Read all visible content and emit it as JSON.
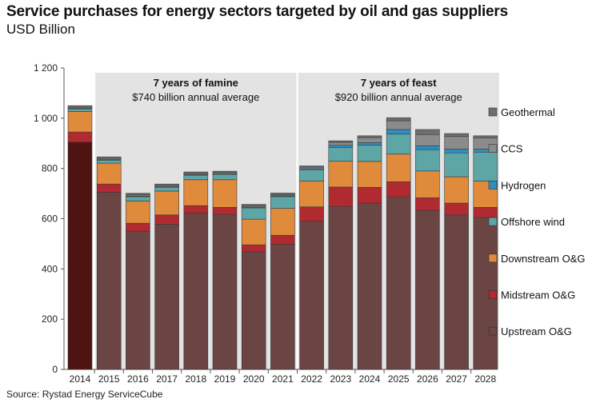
{
  "title": "Service purchases for energy sectors targeted by oil and gas suppliers",
  "subtitle": "USD Billion",
  "source": "Source:  Rystad Energy ServiceCube",
  "chart_data": {
    "type": "bar",
    "stacked": true,
    "categories": [
      "2014",
      "2015",
      "2016",
      "2017",
      "2018",
      "2019",
      "2020",
      "2021",
      "2022",
      "2023",
      "2024",
      "2025",
      "2026",
      "2027",
      "2028"
    ],
    "ylim": [
      0,
      1200
    ],
    "yticks": [
      0,
      200,
      400,
      600,
      800,
      1000,
      1200
    ],
    "ytick_labels": [
      "0",
      "200",
      "400",
      "600",
      "800",
      "1 000",
      "1 200"
    ],
    "series": [
      {
        "name": "Upstream O&G",
        "color": "#6b4444",
        "values": [
          905,
          705,
          550,
          578,
          622,
          617,
          468,
          498,
          590,
          648,
          662,
          687,
          633,
          615,
          605
        ]
      },
      {
        "name": "Midstream O&G",
        "color": "#b02a30",
        "values": [
          40,
          33,
          32,
          37,
          30,
          28,
          28,
          36,
          57,
          78,
          63,
          60,
          50,
          47,
          40
        ]
      },
      {
        "name": "Downstream O&G",
        "color": "#e08a3c",
        "values": [
          82,
          83,
          88,
          95,
          103,
          110,
          102,
          107,
          103,
          103,
          103,
          110,
          107,
          105,
          105
        ]
      },
      {
        "name": "Offshore wind",
        "color": "#5ea5a5",
        "values": [
          10,
          12,
          18,
          15,
          18,
          22,
          45,
          47,
          45,
          55,
          65,
          80,
          85,
          95,
          115
        ]
      },
      {
        "name": "Hydrogen",
        "color": "#2f8fc4",
        "values": [
          2,
          2,
          2,
          2,
          2,
          2,
          3,
          3,
          4,
          8,
          10,
          18,
          15,
          15,
          12
        ]
      },
      {
        "name": "CCS",
        "color": "#8b8b8b",
        "values": [
          5,
          5,
          5,
          5,
          5,
          5,
          5,
          5,
          6,
          12,
          20,
          35,
          45,
          50,
          45
        ]
      },
      {
        "name": "Geothermal",
        "color": "#6e6e6e",
        "values": [
          6,
          6,
          6,
          6,
          6,
          5,
          6,
          6,
          5,
          6,
          7,
          12,
          20,
          12,
          8
        ]
      }
    ],
    "legend_order": [
      "Geothermal",
      "CCS",
      "Hydrogen",
      "Offshore wind",
      "Downstream O&G",
      "Midstream O&G",
      "Upstream O&G"
    ],
    "upstream_2014_color": "#4e1411",
    "background_color": "#e3e3e3",
    "annotations": [
      {
        "range": [
          "2015",
          "2021"
        ],
        "line1": "7 years of famine",
        "line2": "$740 billion annual average"
      },
      {
        "range": [
          "2022",
          "2028"
        ],
        "line1": "7 years of feast",
        "line2": "$920 billion annual average"
      }
    ]
  }
}
